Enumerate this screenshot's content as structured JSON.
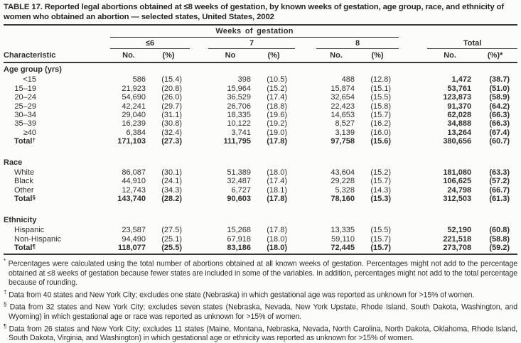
{
  "title": "TABLE 17. Reported legal abortions obtained at ≤8 weeks of gestation, by known weeks of gestation, age group, race, and ethnicity of women who obtained an abortion — selected states, United States, 2002",
  "table": {
    "columns": {
      "characteristic": "Characteristic",
      "span": "Weeks of gestation",
      "groups": [
        {
          "label": "≤6",
          "sub": [
            "No.",
            "(%)"
          ]
        },
        {
          "label": "7",
          "sub": [
            "No",
            "(%)"
          ]
        },
        {
          "label": "8",
          "sub": [
            "No.",
            "(%)"
          ]
        },
        {
          "label": "Total",
          "sub": [
            "No.",
            "(%)*"
          ]
        }
      ]
    },
    "sections": [
      {
        "header": "Age group (yrs)",
        "numeric_labels": true,
        "rows": [
          {
            "label": "<15",
            "values": [
              "586",
              "(15.4)",
              "398",
              "(10.5)",
              "488",
              "(12.8)",
              "1,472",
              "(38.7)"
            ]
          },
          {
            "label": "15–19",
            "values": [
              "21,923",
              "(20.8)",
              "15,964",
              "(15.2)",
              "15,874",
              "(15.1)",
              "53,761",
              "(51.0)"
            ]
          },
          {
            "label": "20–24",
            "values": [
              "54,690",
              "(26.0)",
              "36,529",
              "(17.4)",
              "32,654",
              "(15.5)",
              "123,873",
              "(58.9)"
            ]
          },
          {
            "label": "25–29",
            "values": [
              "42,241",
              "(29.7)",
              "26,706",
              "(18.8)",
              "22,423",
              "(15.8)",
              "91,370",
              "(64.2)"
            ]
          },
          {
            "label": "30–34",
            "values": [
              "29,040",
              "(31.1)",
              "18,335",
              "(19.6)",
              "14,653",
              "(15.7)",
              "62,028",
              "(66.3)"
            ]
          },
          {
            "label": "35–39",
            "values": [
              "16,239",
              "(30.8)",
              "10,122",
              "(19.2)",
              "8,527",
              "(16.2)",
              "34,888",
              "(66.3)"
            ]
          },
          {
            "label": "≥40",
            "values": [
              "6,384",
              "(32.4)",
              "3,741",
              "(19.0)",
              "3,139",
              "(16.0)",
              "13,264",
              "(67.4)"
            ]
          },
          {
            "label": "Total",
            "marker": "†",
            "total": true,
            "values": [
              "171,103",
              "(27.3)",
              "111,795",
              "(17.8)",
              "97,758",
              "(15.6)",
              "380,656",
              "(60.7)"
            ]
          }
        ]
      },
      {
        "header": "Race",
        "numeric_labels": false,
        "rows": [
          {
            "label": "White",
            "values": [
              "86,087",
              "(30.1)",
              "51,389",
              "(18.0)",
              "43,604",
              "(15.2)",
              "181,080",
              "(63.3)"
            ]
          },
          {
            "label": "Black",
            "values": [
              "44,910",
              "(24.1)",
              "32,487",
              "(17.4)",
              "29,228",
              "(15.7)",
              "106,625",
              "(57.2)"
            ]
          },
          {
            "label": "Other",
            "values": [
              "12,743",
              "(34.3)",
              "6,727",
              "(18.1)",
              "5,328",
              "(14.3)",
              "24,798",
              "(66.7)"
            ]
          },
          {
            "label": "Total",
            "marker": "§",
            "total": true,
            "values": [
              "143,740",
              "(28.2)",
              "90,603",
              "(17.8)",
              "78,160",
              "(15.3)",
              "312,503",
              "(61.3)"
            ]
          }
        ]
      },
      {
        "header": "Ethnicity",
        "numeric_labels": false,
        "rows": [
          {
            "label": "Hispanic",
            "values": [
              "23,587",
              "(27.5)",
              "15,268",
              "(17.8)",
              "13,335",
              "(15.5)",
              "52,190",
              "(60.8)"
            ]
          },
          {
            "label": "Non-Hispanic",
            "values": [
              "94,490",
              "(25.1)",
              "67,918",
              "(18.0)",
              "59,110",
              "(15.7)",
              "221,518",
              "(58.8)"
            ]
          },
          {
            "label": "Total",
            "marker": "¶",
            "total": true,
            "values": [
              "118,077",
              "(25.5)",
              "83,186",
              "(18.0)",
              "72,445",
              "(15.7)",
              "273,708",
              "(59.2)"
            ]
          }
        ]
      }
    ]
  },
  "footnotes": [
    {
      "marker": "*",
      "text": "Percentages were calculated using the total number of abortions obtained at all known weeks of gestation. Percentages might not add to the percentage obtained at ≤8 weeks of gestation because fewer states are included in some of the variables. In addition, percentages might not add to the total percentage because of rounding."
    },
    {
      "marker": "†",
      "text": "Data from 40 states and New York City; excludes one state (Nebraska) in which gestational age was reported as unknown for >15% of women."
    },
    {
      "marker": "§",
      "text": "Data from 32 states and New York City; excludes seven states (Nebraska, Nevada, New York Upstate, Rhode Island, South Dakota, Washington, and Wyoming) in which gestational age or race was reported as unknown for >15% of women."
    },
    {
      "marker": "¶",
      "text": "Data from 26 states and New York City; excludes 11 states (Maine, Montana, Nebraska, Nevada, North Carolina, North Dakota, Oklahoma, Rhode Island, South Dakota, Virginia, and Washington) in which gestational age or ethnicity was reported as unknown for >15% of women."
    }
  ]
}
